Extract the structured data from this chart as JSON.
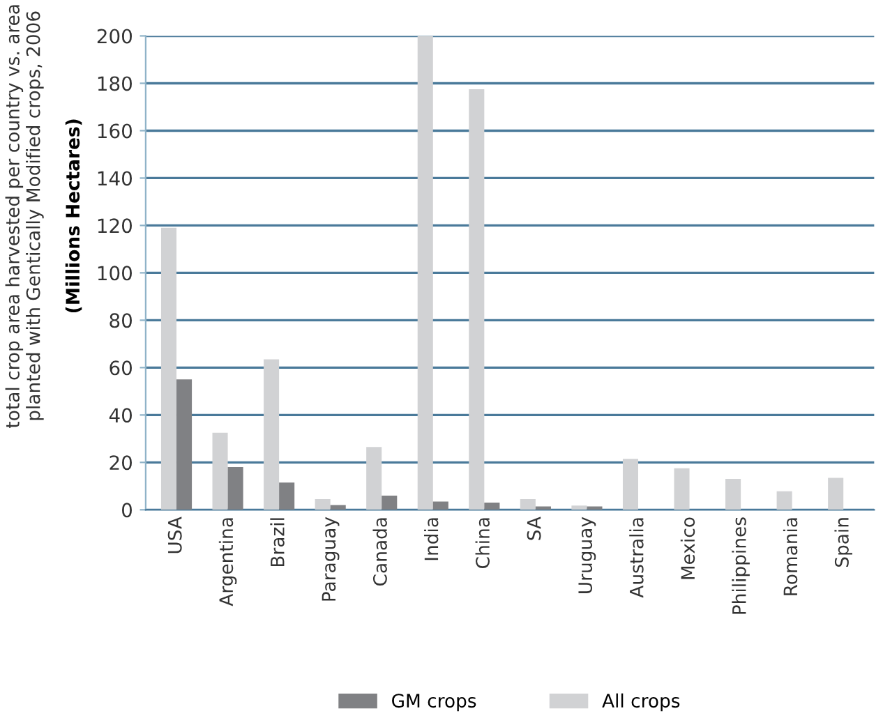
{
  "chart_data": {
    "type": "bar",
    "ylabel": "total crop area harvested per country vs. area\nplanted with Gentically Modified crops, 2006\n(Millions Hectares)",
    "categories": [
      "USA",
      "Argentina",
      "Brazil",
      "Paraguay",
      "Canada",
      "India",
      "China",
      "SA",
      "Uruguay",
      "Australia",
      "Mexico",
      "Philippines",
      "Romania",
      "Spain"
    ],
    "series": [
      {
        "name": "All crops",
        "color": "#d1d2d4",
        "values": [
          119,
          32.5,
          63.5,
          4.5,
          26.5,
          200,
          177.5,
          4.5,
          1.8,
          21.5,
          17.5,
          13,
          7.8,
          13.5
        ]
      },
      {
        "name": "GM crops",
        "color": "#808184",
        "values": [
          55,
          18,
          11.5,
          2,
          6,
          3.5,
          3,
          1.4,
          1.4,
          null,
          null,
          null,
          null,
          null
        ]
      }
    ],
    "ylim": [
      0,
      200
    ],
    "yticks": [
      0,
      20,
      40,
      60,
      80,
      100,
      120,
      140,
      160,
      180,
      200
    ],
    "grid": "y",
    "legend": "bottom"
  }
}
